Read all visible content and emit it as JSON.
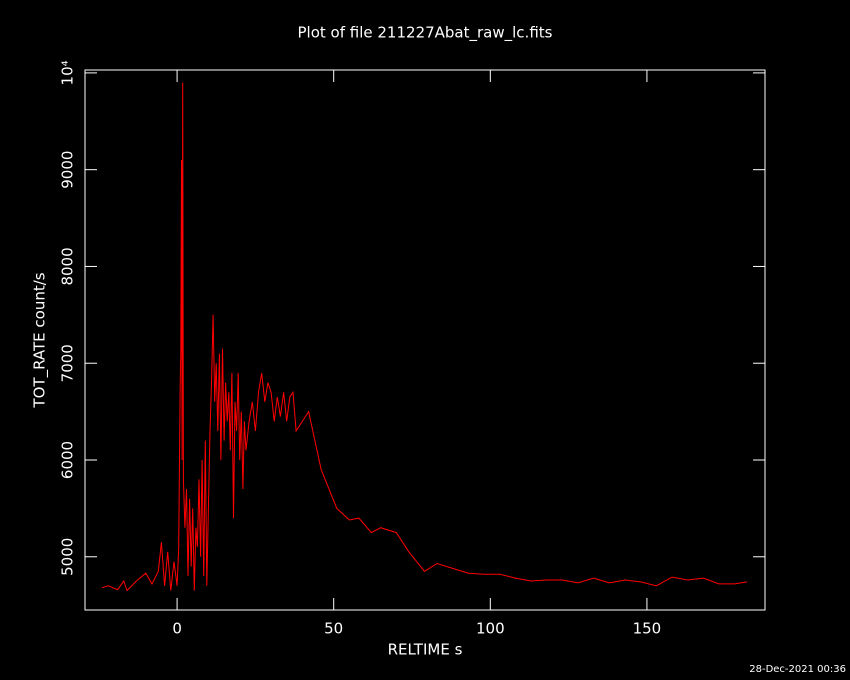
{
  "chart_data": {
    "type": "line",
    "title": "Plot of file 211227Abat_raw_lc.fits",
    "x_label": "RELTIME  s",
    "y_label": "TOT_RATE  count/s",
    "footer": "28-Dec-2021 00:36",
    "xlim": [
      -29.4,
      187.7
    ],
    "ylim": [
      4450,
      10030
    ],
    "xticks": [
      0,
      50,
      100,
      150
    ],
    "yticks": [
      5000,
      6000,
      7000,
      8000,
      9000,
      {
        "value": 10000,
        "label": "10⁴"
      }
    ],
    "series": [
      {
        "name": "TOT_RATE",
        "color": "#ff0000",
        "x": [
          -24,
          -22,
          -19,
          -17,
          -16,
          -13,
          -10,
          -8,
          -6,
          -5,
          -4,
          -3,
          -2,
          -1,
          0,
          0.5,
          1,
          1.2,
          1.4,
          1.6,
          1.8,
          2,
          2.5,
          3,
          3.5,
          4,
          4.5,
          5,
          5.5,
          6,
          6.5,
          7,
          7.5,
          8,
          8.5,
          9,
          9.5,
          10,
          10.5,
          11,
          11.5,
          12,
          12.5,
          13,
          13.5,
          14,
          14.5,
          15,
          15.5,
          16,
          16.5,
          17,
          17.5,
          18,
          18.5,
          19,
          19.5,
          20,
          20.5,
          21,
          21.5,
          22,
          23,
          24,
          25,
          26,
          27,
          28,
          29,
          30,
          31,
          32,
          33,
          34,
          35,
          36,
          37,
          38,
          42,
          46,
          51,
          55,
          58,
          62,
          65,
          70,
          74,
          79,
          83,
          88,
          93,
          98,
          103,
          108,
          113,
          118,
          123,
          128,
          133,
          138,
          143,
          148,
          153,
          158,
          163,
          168,
          173,
          178,
          182
        ],
        "values": [
          4680,
          4700,
          4660,
          4750,
          4650,
          4750,
          4830,
          4720,
          4850,
          5150,
          4700,
          5050,
          4650,
          4950,
          4700,
          5100,
          6800,
          7100,
          9100,
          6000,
          9900,
          5800,
          5300,
          5700,
          4800,
          5600,
          4900,
          5500,
          4650,
          5300,
          5100,
          5800,
          5000,
          6000,
          4800,
          6200,
          4700,
          5500,
          6300,
          6800,
          7500,
          6600,
          7000,
          6300,
          7100,
          6000,
          7150,
          6200,
          6800,
          6400,
          6700,
          6100,
          6900,
          5400,
          6600,
          6300,
          6900,
          6000,
          6500,
          5700,
          6400,
          6100,
          6400,
          6600,
          6300,
          6700,
          6900,
          6600,
          6800,
          6700,
          6400,
          6650,
          6450,
          6700,
          6400,
          6650,
          6700,
          6300,
          6500,
          5900,
          5500,
          5380,
          5400,
          5250,
          5300,
          5250,
          5050,
          4850,
          4930,
          4880,
          4830,
          4820,
          4820,
          4780,
          4750,
          4760,
          4760,
          4730,
          4780,
          4730,
          4760,
          4740,
          4700,
          4790,
          4760,
          4780,
          4720,
          4720,
          4740
        ]
      }
    ]
  }
}
